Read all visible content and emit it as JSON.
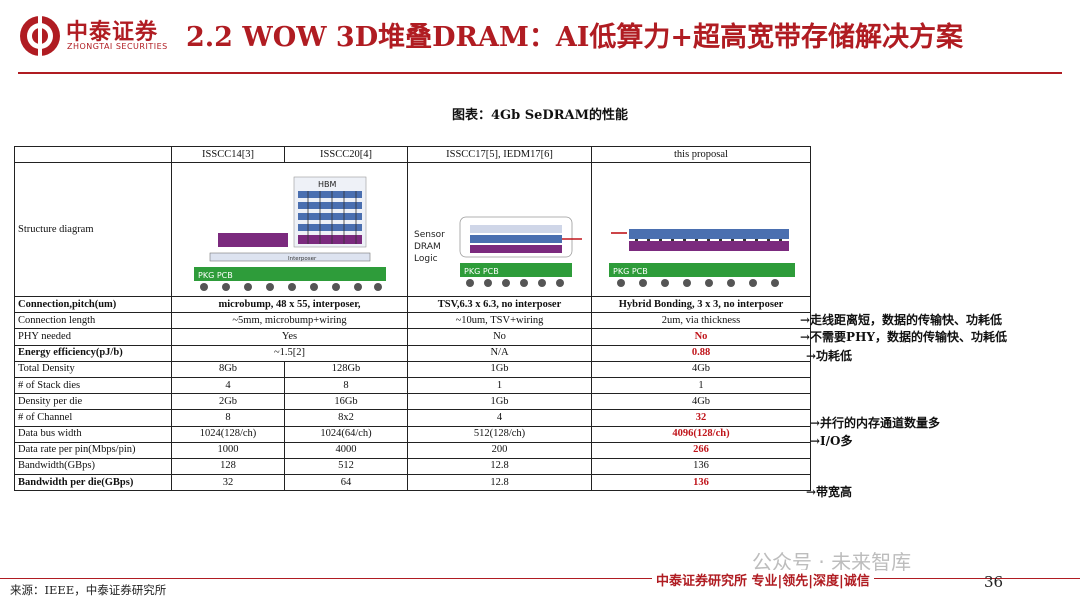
{
  "header": {
    "logo_cn": "中泰证券",
    "logo_en": "ZHONGTAI SECURITIES",
    "title": "2.2 WOW 3D堆叠DRAM：AI低算力+超高宽带存储解决方案"
  },
  "figure_caption": "图表：4Gb SeDRAM的性能",
  "table": {
    "columns": [
      "",
      "ISSCC14[3]",
      "ISSCC20[4]",
      "ISSCC17[5], IEDM17[6]",
      "this proposal"
    ],
    "structure_label": "Structure diagram",
    "diagram_text": {
      "hbm": "HBM",
      "pkg_pcb": "PKG PCB",
      "interposer": "Interposer",
      "sensor": "Sensor",
      "dram": "DRAM",
      "logic": "Logic"
    },
    "rows": [
      {
        "label": "Connection,pitch(um)",
        "bold": true,
        "cells": [
          "microbump, 48 x 55, interposer,",
          "TSV,6.3 x 6.3, no interposer",
          "Hybrid Bonding, 3 x 3, no interposer"
        ]
      },
      {
        "label": "Connection length",
        "cells": [
          "~5mm, microbump+wiring",
          "~10um, TSV+wiring",
          "2um, via thickness"
        ]
      },
      {
        "label": "PHY needed",
        "cells": [
          "Yes",
          "No",
          "No"
        ]
      },
      {
        "label": "Energy efficiency(pJ/b)",
        "bold": true,
        "cells": [
          "~1.5[2]",
          "N/A",
          "0.88"
        ]
      },
      {
        "label": "Total Density",
        "cells": [
          "8Gb",
          "128Gb",
          "1Gb",
          "4Gb"
        ]
      },
      {
        "label": "# of Stack dies",
        "cells": [
          "4",
          "8",
          "1",
          "1"
        ]
      },
      {
        "label": "Density per die",
        "cells": [
          "2Gb",
          "16Gb",
          "1Gb",
          "4Gb"
        ]
      },
      {
        "label": "# of Channel",
        "cells": [
          "8",
          "8x2",
          "4",
          "32"
        ]
      },
      {
        "label": "Data bus width",
        "cells": [
          "1024(128/ch)",
          "1024(64/ch)",
          "512(128/ch)",
          "4096(128/ch)"
        ]
      },
      {
        "label": "Data rate per pin(Mbps/pin)",
        "cells": [
          "1000",
          "4000",
          "200",
          "266"
        ]
      },
      {
        "label": "Bandwidth(GBps)",
        "cells": [
          "128",
          "512",
          "12.8",
          "136"
        ]
      },
      {
        "label": "Bandwidth per die(GBps)",
        "bold": true,
        "cells": [
          "32",
          "64",
          "12.8",
          "136"
        ]
      }
    ]
  },
  "annotations": [
    "→走线距离短，数据的传输快、功耗低",
    "→不需要PHY，数据的传输快、功耗低",
    "→功耗低",
    "→并行的内存通道数量多",
    "→I/O多",
    "→带宽高"
  ],
  "footer": {
    "source": "来源：IEEE，中泰证券研究所",
    "tagline": "中泰证券研究所 专业|领先|深度|诚信",
    "page": "36",
    "watermark": "公众号 · 未来智库"
  },
  "colors": {
    "brand_red": "#b01c22",
    "highlight_red": "#c0151b",
    "pcb_green": "#2e9c3a",
    "die_purple": "#7b2a7e",
    "die_blue": "#4a6fb0"
  }
}
